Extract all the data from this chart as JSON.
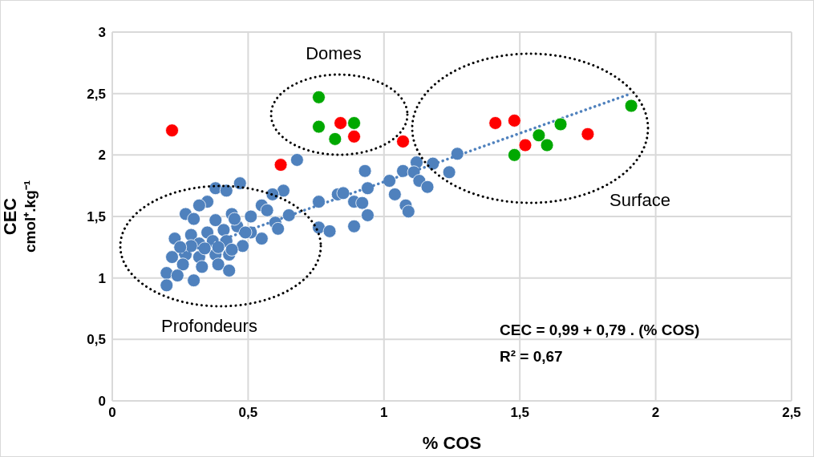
{
  "chart_data": {
    "type": "scatter",
    "xlabel": "% COS",
    "ylabel": "CEC\ncmol⁺.kg⁻¹",
    "xlim": [
      0,
      2.5
    ],
    "xticks": [
      {
        "value": 0,
        "label": "0"
      },
      {
        "value": 0.5,
        "label": "0,5"
      },
      {
        "value": 1,
        "label": "1"
      },
      {
        "value": 1.5,
        "label": "1,5"
      },
      {
        "value": 2,
        "label": "2"
      },
      {
        "value": 2.5,
        "label": "2,5"
      }
    ],
    "ylim": [
      0,
      3
    ],
    "yticks": [
      {
        "value": 0,
        "label": "0"
      },
      {
        "value": 0.5,
        "label": "0,5"
      },
      {
        "value": 1,
        "label": "1"
      },
      {
        "value": 1.5,
        "label": "1,5"
      },
      {
        "value": 2,
        "label": "2"
      },
      {
        "value": 2.5,
        "label": "2,5"
      },
      {
        "value": 3,
        "label": "3"
      }
    ],
    "grid": true,
    "series": [
      {
        "color": "#4f81bd",
        "marker": "circle",
        "x": [
          0.68,
          0.93,
          0.94,
          0.76,
          0.83,
          0.85,
          0.89,
          0.92,
          0.94,
          0.89,
          0.76,
          0.8,
          1.02,
          1.04,
          1.08,
          1.09,
          1.07,
          1.12,
          1.11,
          1.13,
          1.16,
          1.18,
          1.24,
          1.27,
          0.63,
          0.59,
          0.65,
          0.6,
          0.61,
          0.55,
          0.57,
          0.47,
          0.38,
          0.42,
          0.35,
          0.32,
          0.27,
          0.44,
          0.3,
          0.38,
          0.51,
          0.23,
          0.55,
          0.51,
          0.46,
          0.41,
          0.35,
          0.29,
          0.32,
          0.37,
          0.42,
          0.48,
          0.22,
          0.27,
          0.32,
          0.38,
          0.43,
          0.39,
          0.33,
          0.43,
          0.26,
          0.2,
          0.24,
          0.3,
          0.2,
          0.29,
          0.34,
          0.39,
          0.44,
          0.25,
          0.49,
          0.45
        ],
        "values": [
          1.96,
          1.87,
          1.73,
          1.62,
          1.68,
          1.69,
          1.62,
          1.61,
          1.51,
          1.42,
          1.41,
          1.38,
          1.79,
          1.68,
          1.59,
          1.54,
          1.87,
          1.94,
          1.86,
          1.79,
          1.74,
          1.93,
          1.86,
          2.01,
          1.71,
          1.68,
          1.51,
          1.45,
          1.4,
          1.59,
          1.55,
          1.77,
          1.73,
          1.71,
          1.62,
          1.59,
          1.52,
          1.52,
          1.48,
          1.47,
          1.5,
          1.32,
          1.32,
          1.37,
          1.42,
          1.39,
          1.37,
          1.35,
          1.28,
          1.3,
          1.3,
          1.26,
          1.17,
          1.19,
          1.17,
          1.19,
          1.19,
          1.11,
          1.09,
          1.06,
          1.11,
          1.04,
          1.02,
          0.98,
          0.94,
          1.26,
          1.24,
          1.25,
          1.23,
          1.25,
          1.37,
          1.48
        ]
      },
      {
        "type": "line",
        "color": "#4f81bd",
        "line_style": "dotted",
        "marker": "none",
        "x": [
          0.25,
          1.91
        ],
        "values": [
          1.19,
          2.5
        ]
      },
      {
        "color": "#ff0000",
        "marker": "circle",
        "x": [
          0.22,
          0.62,
          0.84,
          0.89,
          1.07,
          1.41,
          1.48,
          1.52,
          1.75
        ],
        "values": [
          2.2,
          1.92,
          2.26,
          2.15,
          2.11,
          2.26,
          2.28,
          2.08,
          2.17
        ]
      },
      {
        "color": "#00a800",
        "marker": "circle",
        "x": [
          0.76,
          0.76,
          0.89,
          0.82,
          1.48,
          1.57,
          1.6,
          1.65,
          1.91
        ],
        "values": [
          2.47,
          2.23,
          2.26,
          2.13,
          2.0,
          2.16,
          2.08,
          2.25,
          2.4
        ]
      }
    ],
    "annotations": [
      "Domes",
      "Surface",
      "Profondeurs",
      "CEC = 0,99 + 0,79 . (% COS)",
      "R² = 0,67"
    ]
  }
}
